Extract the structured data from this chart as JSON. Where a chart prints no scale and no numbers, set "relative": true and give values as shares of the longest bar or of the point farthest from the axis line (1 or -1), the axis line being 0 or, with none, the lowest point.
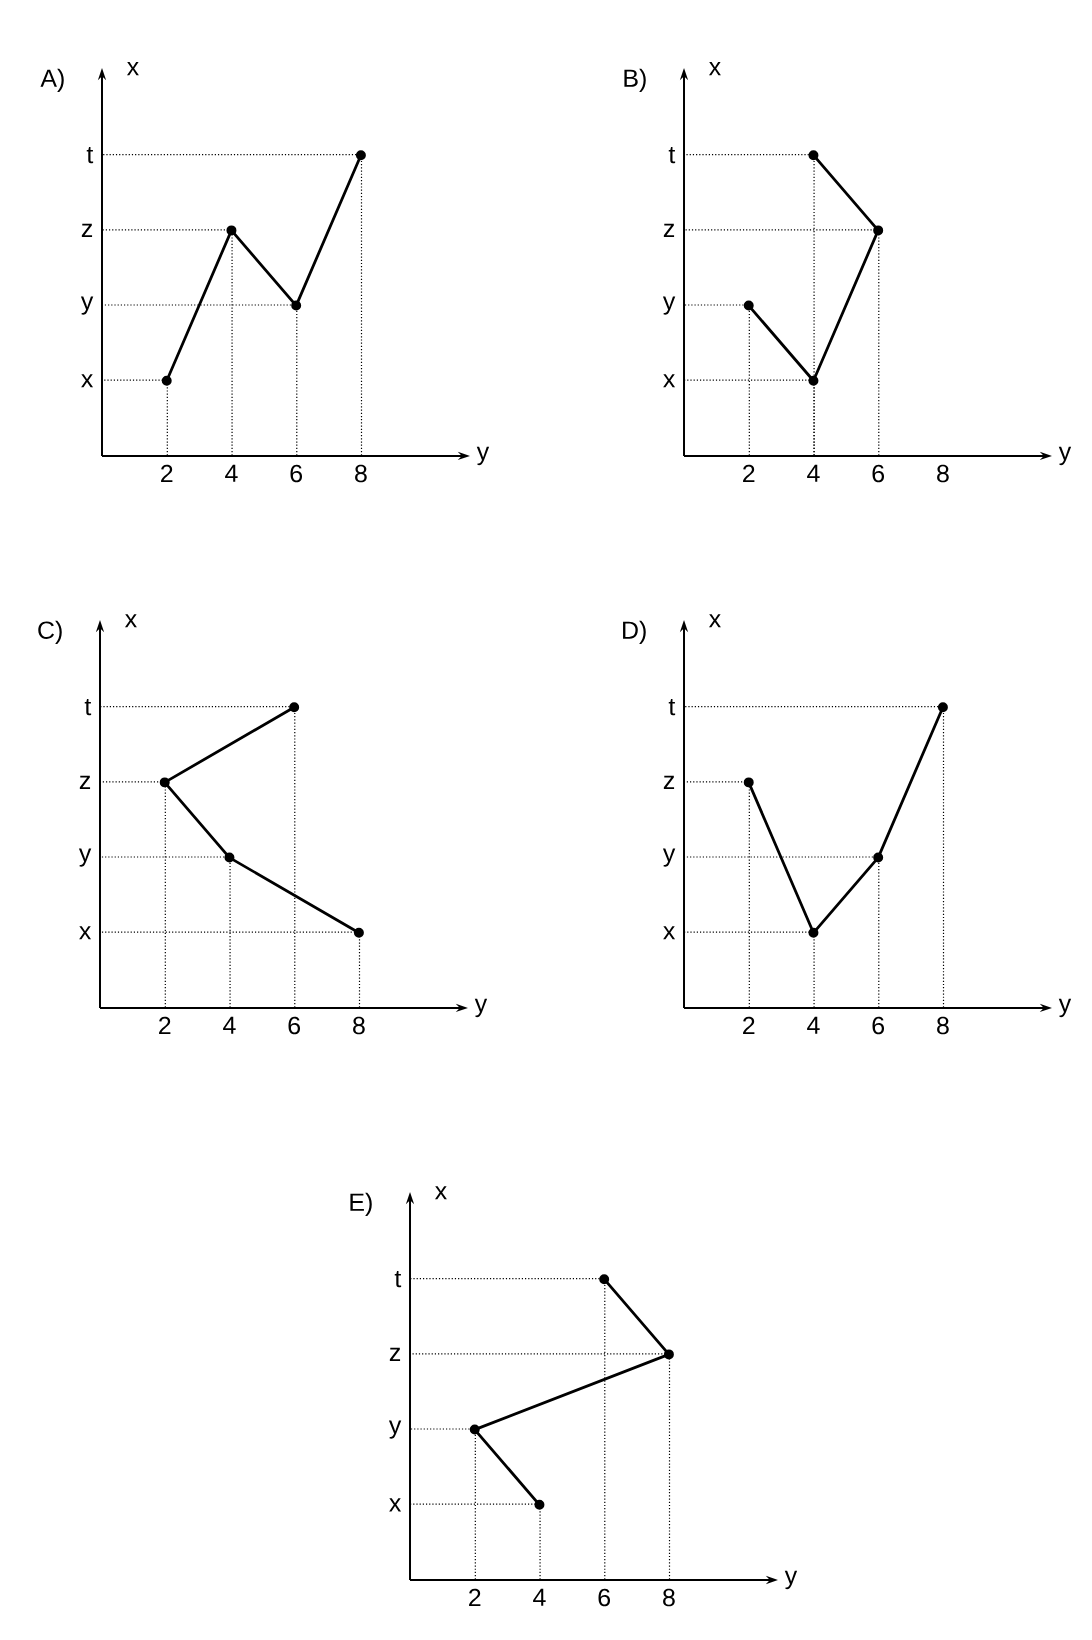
{
  "chart_data": [
    {
      "type": "line",
      "relative": true,
      "title": "A)",
      "xlabel": "y",
      "ylabel": "x",
      "annotations": [
        "x",
        "y",
        "z",
        "t"
      ],
      "x": [
        2,
        4,
        6,
        8
      ],
      "values": [
        0.25,
        0.75,
        0.5,
        1
      ],
      "color": "#000000",
      "marker": "circle",
      "xlim": [
        0,
        11
      ],
      "xticks": [
        2,
        4,
        6,
        8
      ]
    },
    {
      "type": "line",
      "relative": true,
      "title": "B)",
      "xlabel": "y",
      "ylabel": "x",
      "annotations": [
        "x",
        "y",
        "z",
        "t"
      ],
      "x": [
        2,
        4,
        6,
        4
      ],
      "values": [
        0.5,
        0.25,
        0.75,
        1
      ],
      "color": "#000000",
      "marker": "circle",
      "xlim": [
        0,
        11
      ],
      "xticks": [
        2,
        4,
        6,
        8
      ]
    },
    {
      "type": "line",
      "relative": true,
      "title": "C)",
      "xlabel": "y",
      "ylabel": "x",
      "annotations": [
        "x",
        "y",
        "z",
        "t"
      ],
      "x": [
        6,
        2,
        4,
        8
      ],
      "values": [
        1,
        0.75,
        0.5,
        0.25
      ],
      "color": "#000000",
      "marker": "circle",
      "xlim": [
        0,
        11
      ],
      "xticks": [
        2,
        4,
        6,
        8
      ]
    },
    {
      "type": "line",
      "relative": true,
      "title": "D)",
      "xlabel": "y",
      "ylabel": "x",
      "annotations": [
        "x",
        "y",
        "z",
        "t"
      ],
      "x": [
        2,
        4,
        6,
        8
      ],
      "values": [
        0.75,
        0.25,
        0.5,
        1
      ],
      "color": "#000000",
      "marker": "circle",
      "xlim": [
        0,
        11
      ],
      "xticks": [
        2,
        4,
        6,
        8
      ]
    },
    {
      "type": "line",
      "relative": true,
      "title": "E)",
      "xlabel": "y",
      "ylabel": "x",
      "annotations": [
        "x",
        "y",
        "z",
        "t"
      ],
      "x": [
        6,
        8,
        2,
        4
      ],
      "values": [
        1,
        0.75,
        0.5,
        0.25
      ],
      "color": "#000000",
      "marker": "circle",
      "xlim": [
        0,
        11
      ],
      "xticks": [
        2,
        4,
        6,
        8
      ]
    }
  ]
}
